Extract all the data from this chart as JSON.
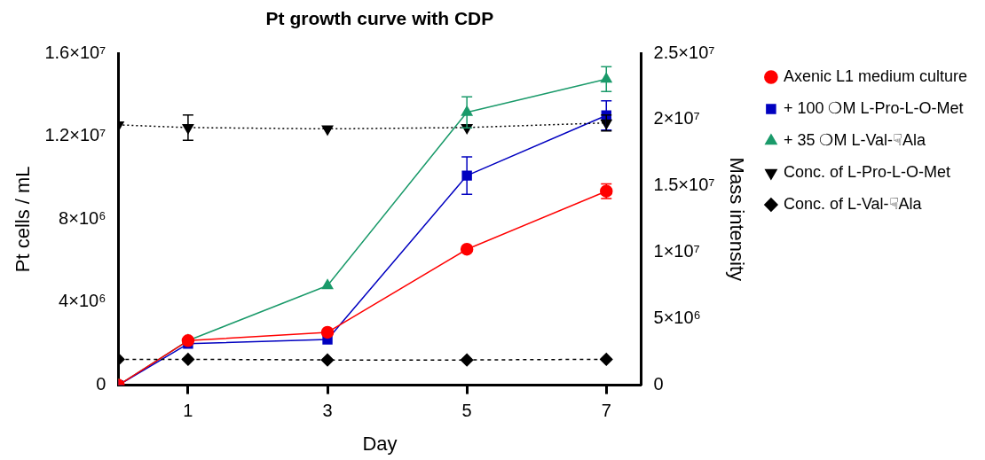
{
  "chart_data": {
    "type": "line",
    "title": "Pt growth curve with CDP",
    "xlabel": "Day",
    "ylabel": "Pt cells / mL",
    "y2label": "Mass intensity",
    "x": [
      0,
      1,
      3,
      5,
      7
    ],
    "xlim": [
      0,
      7.5
    ],
    "xticks": [
      1,
      3,
      5,
      7
    ],
    "ylim": [
      0,
      16000000
    ],
    "yticks": [
      0,
      {
        "value": 4000000,
        "label": "4×10⁶"
      },
      {
        "value": 8000000,
        "label": "8×10⁶"
      },
      {
        "value": 12000000,
        "label": "1.2×10⁷"
      },
      {
        "value": 16000000,
        "label": "1.6×10⁷"
      }
    ],
    "y2lim": [
      0,
      25000000
    ],
    "y2ticks": [
      0,
      {
        "value": 5000000,
        "label": "5×10⁶"
      },
      {
        "value": 10000000,
        "label": "1×10⁷"
      },
      {
        "value": 15000000,
        "label": "1.5×10⁷"
      },
      {
        "value": 20000000,
        "label": "2×10⁷"
      },
      {
        "value": 25000000,
        "label": "2.5×10⁷"
      }
    ],
    "grid": false,
    "legend": "right",
    "series": [
      {
        "name": "Axenic L1 medium culture",
        "color": "#ff0000",
        "marker": "circle",
        "line_style": "solid",
        "values": [
          0,
          2150000,
          2550000,
          6550000,
          9350000
        ],
        "errors": [
          null,
          null,
          null,
          null,
          350000
        ]
      },
      {
        "name": "+ 100 ❍M L-Pro-L-O-Met",
        "color": "#0000c0",
        "marker": "square",
        "line_style": "solid",
        "values": [
          0,
          2000000,
          2200000,
          10100000,
          13000000
        ],
        "errors": [
          null,
          null,
          null,
          900000,
          700000
        ]
      },
      {
        "name": "+ 35 ❍M L-Val-☟Ala",
        "color": "#1a9a6a",
        "marker": "triangle",
        "line_style": "solid",
        "values": [
          0,
          2150000,
          4800000,
          13150000,
          14750000
        ],
        "errors": [
          null,
          null,
          null,
          750000,
          600000
        ]
      },
      {
        "name": "Conc. of L-Pro-L-O-Met",
        "color": "#000000",
        "marker": "triangle-down",
        "line_style": "dotted",
        "axis": "y2",
        "values": [
          19600000,
          19400000,
          19300000,
          19400000,
          19750000
        ],
        "errors": [
          null,
          950000,
          null,
          null,
          600000
        ]
      },
      {
        "name": "Conc. of L-Val-☟Ala",
        "color": "#000000",
        "marker": "diamond",
        "line_style": "dashed",
        "axis": "y2",
        "values": [
          1950000,
          1950000,
          1900000,
          1900000,
          1950000
        ]
      }
    ]
  }
}
